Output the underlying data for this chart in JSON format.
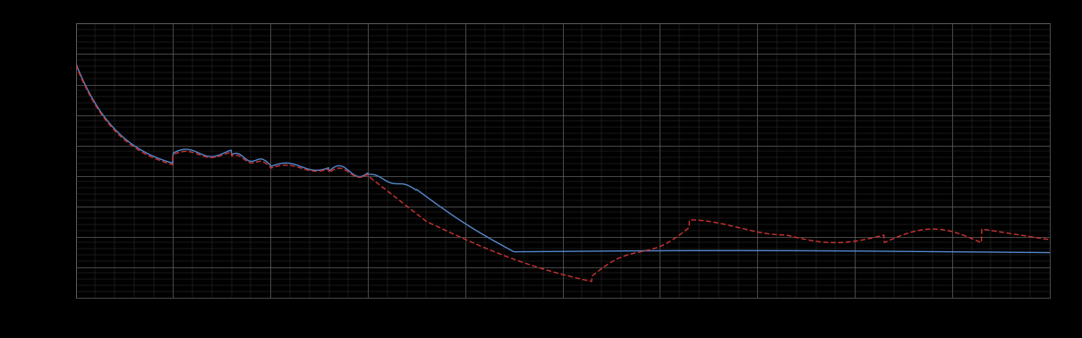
{
  "background_color": "#000000",
  "plot_bg_color": "#000000",
  "grid_major_color": "#666666",
  "grid_minor_color": "#3a3a3a",
  "line1_color": "#5588cc",
  "line2_color": "#cc3333",
  "figsize": [
    12.09,
    3.78
  ],
  "dpi": 100,
  "xlim": [
    0,
    100
  ],
  "ylim": [
    0,
    9
  ]
}
